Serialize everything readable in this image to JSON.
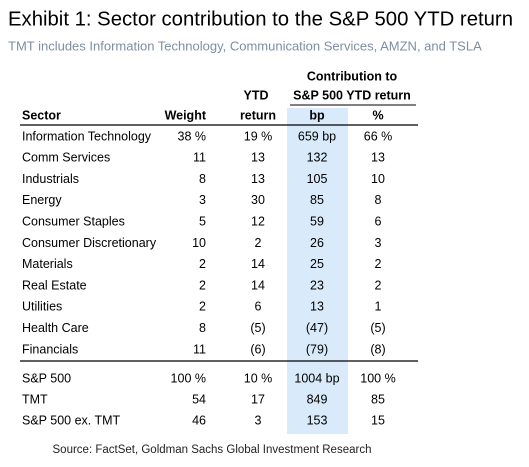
{
  "title": "Exhibit 1: Sector contribution to the S&P 500 YTD return",
  "subtitle": "TMT includes Information Technology, Communication Services, AMZN, and TSLA",
  "table": {
    "header_group": "Contribution to",
    "header_top": [
      "YTD",
      "S&P 500 YTD return"
    ],
    "columns": [
      "Sector",
      "Weight",
      "return",
      "bp",
      "%"
    ],
    "rows": [
      [
        "Information Technology",
        "38 %",
        "19 %",
        "659 bp",
        "66 %"
      ],
      [
        "Comm Services",
        "11",
        "13",
        "132",
        "13"
      ],
      [
        "Industrials",
        "8",
        "13",
        "105",
        "10"
      ],
      [
        "Energy",
        "3",
        "30",
        "85",
        "8"
      ],
      [
        "Consumer Staples",
        "5",
        "12",
        "59",
        "6"
      ],
      [
        "Consumer Discretionary",
        "10",
        "2",
        "26",
        "3"
      ],
      [
        "Materials",
        "2",
        "14",
        "25",
        "2"
      ],
      [
        "Real Estate",
        "2",
        "14",
        "23",
        "2"
      ],
      [
        "Utilities",
        "2",
        "6",
        "13",
        "1"
      ],
      [
        "Health Care",
        "8",
        "(5)",
        "(47)",
        "(5)"
      ],
      [
        "Financials",
        "11",
        "(6)",
        "(79)",
        "(8)"
      ]
    ],
    "summary_rows": [
      [
        "S&P 500",
        "100 %",
        "10 %",
        "1004 bp",
        "100 %"
      ],
      [
        "TMT",
        "54",
        "17",
        "849",
        "85"
      ],
      [
        "S&P 500 ex. TMT",
        "46",
        "3",
        "153",
        "15"
      ]
    ]
  },
  "source": "Source: FactSet, Goldman Sachs Global Investment Research"
}
